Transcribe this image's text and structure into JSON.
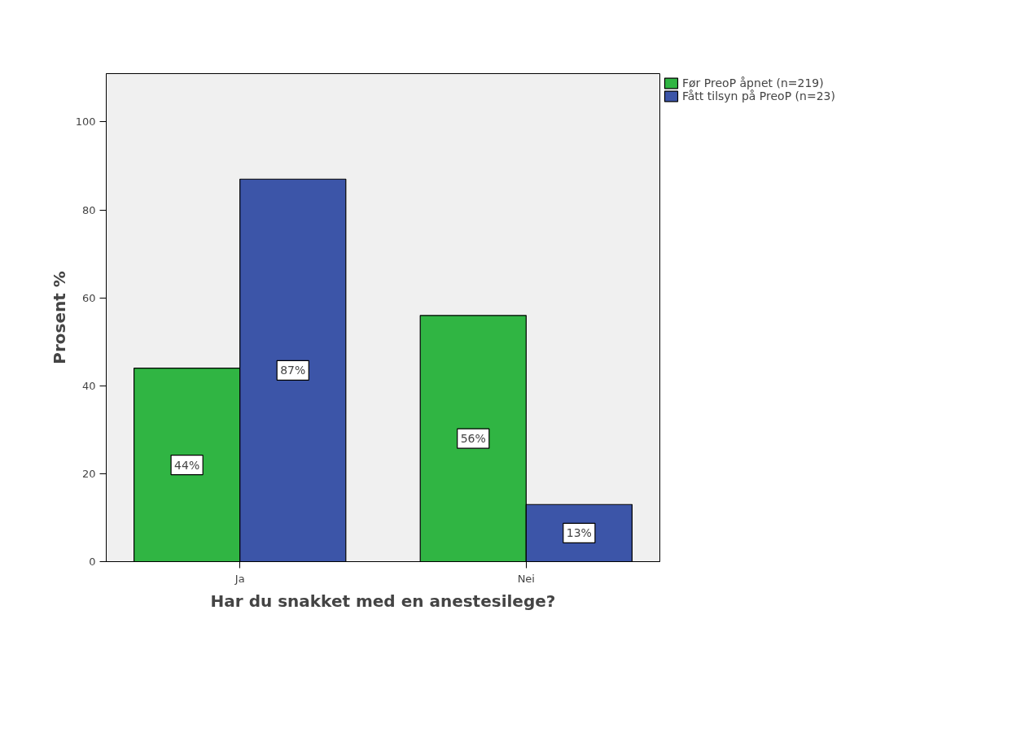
{
  "chart_data": {
    "type": "bar",
    "xlabel": "Har du snakket med en anestesilege?",
    "ylabel": "Prosent %",
    "categories": [
      "Ja",
      "Nei"
    ],
    "series": [
      {
        "name": "Før PreoP åpnet (n=219)",
        "color": "#30b543",
        "values": [
          44,
          56
        ],
        "value_labels": [
          "44%",
          "56%"
        ]
      },
      {
        "name": "Fått tilsyn på PreoP (n=23)",
        "color": "#3c55a8",
        "values": [
          87,
          13
        ],
        "value_labels": [
          "87%",
          "13%"
        ]
      }
    ],
    "ylim": [
      0,
      111
    ],
    "yticks": [
      0,
      20,
      40,
      60,
      80,
      100
    ],
    "grid": false,
    "legend": "top right"
  }
}
